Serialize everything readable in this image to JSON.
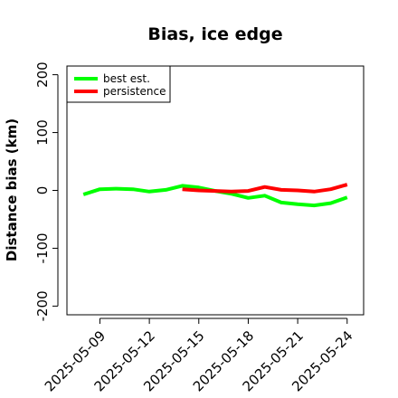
{
  "chart_data": {
    "type": "line",
    "title": "Bias, ice edge",
    "xlabel": "",
    "ylabel": "Distance bias (km)",
    "x": [
      "2025-05-08",
      "2025-05-09",
      "2025-05-10",
      "2025-05-11",
      "2025-05-12",
      "2025-05-13",
      "2025-05-14",
      "2025-05-15",
      "2025-05-16",
      "2025-05-17",
      "2025-05-18",
      "2025-05-19",
      "2025-05-20",
      "2025-05-21",
      "2025-05-22",
      "2025-05-23",
      "2025-05-24"
    ],
    "xlim": [
      "2025-05-07",
      "2025-05-25"
    ],
    "xticks": [
      "2025-05-09",
      "2025-05-12",
      "2025-05-15",
      "2025-05-18",
      "2025-05-21",
      "2025-05-24"
    ],
    "ylim": [
      -215,
      215
    ],
    "yticks": [
      -200,
      -100,
      0,
      100,
      200
    ],
    "ytick_labels": [
      "-200",
      "-100",
      "0",
      "100",
      "200"
    ],
    "grid": false,
    "legend_position": "top-left",
    "series": [
      {
        "name": "best est.",
        "color": "#00ff00",
        "values": [
          -7,
          2,
          3,
          2,
          -2,
          1,
          8,
          5,
          -1,
          -6,
          -13,
          -9,
          -21,
          -24,
          -26,
          -22,
          -12
        ]
      },
      {
        "name": "persistence",
        "color": "#ff0000",
        "values": [
          null,
          null,
          null,
          null,
          null,
          null,
          2,
          0,
          -1,
          -2,
          -1,
          6,
          1,
          0,
          -2,
          2,
          10
        ]
      }
    ]
  }
}
